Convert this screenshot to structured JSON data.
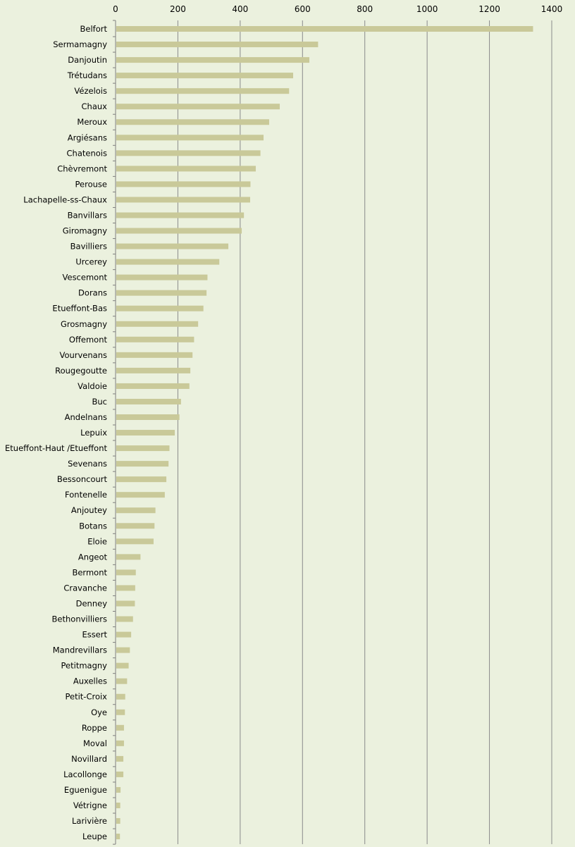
{
  "chart_data": {
    "type": "bar",
    "orientation": "horizontal",
    "title": "",
    "xlabel": "",
    "ylabel": "",
    "xlim": [
      0,
      1400
    ],
    "x_ticks": [
      "0",
      "200",
      "400",
      "600",
      "800",
      "1000",
      "1200",
      "1400"
    ],
    "grid": true,
    "legend": "none",
    "bar_color": "#c9c999",
    "background_color": "#ebf1de",
    "categories": [
      "Belfort",
      "Sermamagny",
      "Danjoutin",
      "Trétudans",
      "Vézelois",
      "Chaux",
      "Meroux",
      "Argiésans",
      "Chatenois",
      "Chèvremont",
      "Perouse",
      "Lachapelle-ss-Chaux",
      "Banvillars",
      "Giromagny",
      "Bavilliers",
      "Urcerey",
      "Vescemont",
      "Dorans",
      "Etueffont-Bas",
      "Grosmagny",
      "Offemont",
      "Vourvenans",
      "Rougegoutte",
      "Valdoie",
      "Buc",
      "Andelnans",
      "Lepuix",
      "Etueffont-Haut /Etueffont",
      "Sevenans",
      "Bessoncourt",
      "Fontenelle",
      "Anjoutey",
      "Botans",
      "Eloie",
      "Angeot",
      "Bermont",
      "Cravanche",
      "Denney",
      "Bethonvilliers",
      "Essert",
      "Mandrevillars",
      "Petitmagny",
      "Auxelles",
      "Petit-Croix",
      "Oye",
      "Roppe",
      "Moval",
      "Novillard",
      "Lacollonge",
      "Eguenigue",
      "Vétrigne",
      "Larivière",
      "Leupe"
    ],
    "values": [
      1340,
      650,
      622,
      570,
      557,
      527,
      493,
      475,
      465,
      450,
      433,
      432,
      412,
      405,
      362,
      333,
      295,
      292,
      282,
      265,
      252,
      247,
      240,
      237,
      210,
      205,
      190,
      173,
      170,
      163,
      158,
      128,
      125,
      122,
      80,
      65,
      63,
      62,
      56,
      50,
      46,
      42,
      37,
      31,
      30,
      27,
      27,
      25,
      25,
      16,
      15,
      15,
      14
    ]
  }
}
